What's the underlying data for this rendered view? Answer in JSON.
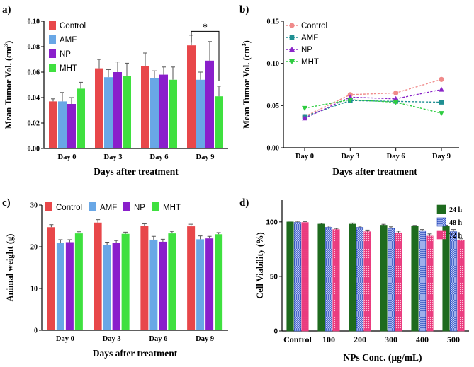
{
  "figure": {
    "background": "#ffffff",
    "axis_color": "#000000"
  },
  "colors": {
    "control": "#e8474a",
    "amf": "#69a7e6",
    "np": "#8a1fcb",
    "mht": "#3fe03f",
    "line_control": "#f08a8a",
    "line_amf": "#1f8f92",
    "line_np": "#8a25c8",
    "line_mht": "#2ecc40",
    "d_24h": "#1e6b1e",
    "d_48h": "#2648b8",
    "d_72h": "#ea3b7e"
  },
  "chart_data": [
    {
      "panel_label": "a)",
      "type": "bar",
      "title": "",
      "xlabel": "Days after treatment",
      "ylabel_main": "Mean Tumor Vol. (cm",
      "ylabel_sup": "3",
      "ylabel_close": ")",
      "ylim": [
        0,
        0.1
      ],
      "yticks": [
        0,
        0.02,
        0.04,
        0.06,
        0.08,
        0.1
      ],
      "ytick_labels": [
        "0.00",
        "0.02",
        "0.04",
        "0.06",
        "0.08",
        "0.10"
      ],
      "categories": [
        "Day 0",
        "Day 3",
        "Day 6",
        "Day 9"
      ],
      "legend_position": "top-left",
      "series": [
        {
          "name": "Control",
          "color_key": "control",
          "values": [
            0.037,
            0.063,
            0.065,
            0.081
          ],
          "errors": [
            0.002,
            0.007,
            0.01,
            0.008
          ]
        },
        {
          "name": "AMF",
          "color_key": "amf",
          "values": [
            0.037,
            0.056,
            0.055,
            0.054
          ],
          "errors": [
            0.007,
            0.006,
            0.006,
            0.006
          ]
        },
        {
          "name": "NP",
          "color_key": "np",
          "values": [
            0.035,
            0.06,
            0.058,
            0.069
          ],
          "errors": [
            0.005,
            0.008,
            0.006,
            0.015
          ]
        },
        {
          "name": "MHT",
          "color_key": "mht",
          "values": [
            0.047,
            0.057,
            0.054,
            0.041
          ],
          "errors": [
            0.005,
            0.01,
            0.01,
            0.008
          ]
        }
      ],
      "annotation": {
        "text": "*",
        "bracket_between": "Control vs MHT at Day 9",
        "bracket_y": 0.092
      }
    },
    {
      "panel_label": "b)",
      "type": "line",
      "title": "",
      "xlabel": "Days after treatment",
      "ylabel_main": "Mean Tumor Vol. (cm",
      "ylabel_sup": "3",
      "ylabel_close": ")",
      "ylim": [
        0,
        0.15
      ],
      "yticks": [
        0,
        0.05,
        0.1,
        0.15
      ],
      "ytick_labels": [
        "0.00",
        "0.05",
        "0.10",
        "0.15"
      ],
      "categories": [
        "Day 0",
        "Day 3",
        "Day 6",
        "Day 9"
      ],
      "legend_position": "top-left",
      "series": [
        {
          "name": "Control",
          "color_key": "line_control",
          "marker": "circle",
          "values": [
            0.037,
            0.063,
            0.065,
            0.081
          ]
        },
        {
          "name": "AMF",
          "color_key": "line_amf",
          "marker": "square",
          "values": [
            0.037,
            0.056,
            0.055,
            0.054
          ]
        },
        {
          "name": "NP",
          "color_key": "line_np",
          "marker": "triangle-up",
          "values": [
            0.035,
            0.06,
            0.058,
            0.069
          ]
        },
        {
          "name": "MHT",
          "color_key": "line_mht",
          "marker": "triangle-down",
          "values": [
            0.047,
            0.057,
            0.054,
            0.041
          ]
        }
      ]
    },
    {
      "panel_label": "c)",
      "type": "bar",
      "title": "",
      "xlabel": "Days after treatment",
      "ylabel_main": "Animal weight (g)",
      "ylabel_sup": "",
      "ylabel_close": "",
      "ylim": [
        0,
        30
      ],
      "yticks": [
        0,
        10,
        20,
        30
      ],
      "ytick_labels": [
        "0",
        "10",
        "20",
        "30"
      ],
      "categories": [
        "Day 0",
        "Day 3",
        "Day 6",
        "Day 9"
      ],
      "legend_position": "top",
      "series": [
        {
          "name": "Control",
          "color_key": "control",
          "values": [
            24.7,
            25.8,
            25.0,
            24.9
          ],
          "errors": [
            0.6,
            0.7,
            0.5,
            0.5
          ]
        },
        {
          "name": "AMF",
          "color_key": "amf",
          "values": [
            20.9,
            20.4,
            21.7,
            21.8
          ],
          "errors": [
            0.8,
            0.7,
            0.8,
            0.8
          ]
        },
        {
          "name": "NP",
          "color_key": "np",
          "values": [
            21.1,
            21.0,
            21.2,
            22.0
          ],
          "errors": [
            0.6,
            0.5,
            0.6,
            0.5
          ]
        },
        {
          "name": "MHT",
          "color_key": "mht",
          "values": [
            23.2,
            23.1,
            23.2,
            23.0
          ],
          "errors": [
            0.4,
            0.4,
            0.5,
            0.4
          ]
        }
      ]
    },
    {
      "panel_label": "d)",
      "type": "bar",
      "title": "",
      "xlabel": "NPs Conc. (µg/mL)",
      "ylabel_main": "Cell Viability (%)",
      "ylabel_sup": "",
      "ylabel_close": "",
      "ylim": [
        0,
        120
      ],
      "yticks": [
        0,
        50,
        100
      ],
      "ytick_labels": [
        "0",
        "50",
        "100"
      ],
      "categories": [
        "Control",
        "100",
        "200",
        "300",
        "400",
        "500"
      ],
      "legend_position": "top-right",
      "series": [
        {
          "name": "24 h",
          "color_key": "d_24h",
          "pattern": "solid",
          "values": [
            100,
            98,
            98,
            97,
            96,
            96
          ],
          "errors": [
            0.8,
            0.8,
            1.0,
            0.8,
            0.8,
            1.0
          ]
        },
        {
          "name": "48 h",
          "color_key": "d_48h",
          "pattern": "crosshatch",
          "values": [
            99.5,
            95,
            95,
            94,
            92,
            91
          ],
          "errors": [
            1.0,
            1.2,
            1.2,
            1.5,
            1.0,
            2.0
          ]
        },
        {
          "name": "72 h",
          "color_key": "d_72h",
          "pattern": "dots",
          "values": [
            99.5,
            93,
            91,
            90,
            87,
            83
          ],
          "errors": [
            0.8,
            1.0,
            1.5,
            1.5,
            2.0,
            1.5
          ]
        }
      ]
    }
  ]
}
